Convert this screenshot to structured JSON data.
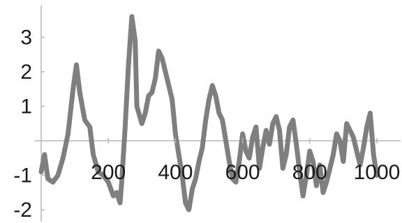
{
  "chart_data": {
    "type": "line",
    "title": "",
    "xlabel": "",
    "ylabel": "",
    "xlim": [
      0,
      1000
    ],
    "ylim": [
      -2.2,
      3.9
    ],
    "grid": false,
    "legend": "none",
    "x_ticks": [
      200,
      400,
      600,
      800,
      1000
    ],
    "y_ticks": [
      -2,
      -1,
      1,
      2,
      3
    ],
    "x_tick_labels": [
      "200",
      "400",
      "600",
      "800",
      "1000"
    ],
    "y_tick_labels": [
      "-2",
      "-1",
      "1",
      "2",
      "3"
    ],
    "series": [
      {
        "color": "#7f7f7f",
        "points": [
          [
            0,
            -0.9
          ],
          [
            10,
            -0.4
          ],
          [
            20,
            -1.1
          ],
          [
            35,
            -1.2
          ],
          [
            50,
            -1.0
          ],
          [
            65,
            -0.5
          ],
          [
            80,
            0.2
          ],
          [
            95,
            1.5
          ],
          [
            105,
            2.2
          ],
          [
            115,
            1.4
          ],
          [
            130,
            0.6
          ],
          [
            145,
            0.4
          ],
          [
            155,
            -0.4
          ],
          [
            170,
            -0.9
          ],
          [
            185,
            -1.0
          ],
          [
            200,
            -1.2
          ],
          [
            215,
            -1.6
          ],
          [
            225,
            -1.5
          ],
          [
            235,
            -1.8
          ],
          [
            240,
            -1.2
          ],
          [
            250,
            0.4
          ],
          [
            260,
            2.2
          ],
          [
            270,
            3.6
          ],
          [
            280,
            2.9
          ],
          [
            285,
            1.0
          ],
          [
            300,
            0.5
          ],
          [
            310,
            0.8
          ],
          [
            320,
            1.3
          ],
          [
            330,
            1.4
          ],
          [
            340,
            1.8
          ],
          [
            350,
            2.6
          ],
          [
            360,
            2.4
          ],
          [
            370,
            2.0
          ],
          [
            380,
            1.6
          ],
          [
            390,
            1.2
          ],
          [
            400,
            0.2
          ],
          [
            410,
            -0.4
          ],
          [
            420,
            -1.0
          ],
          [
            430,
            -1.8
          ],
          [
            440,
            -2.0
          ],
          [
            450,
            -1.4
          ],
          [
            460,
            -1.1
          ],
          [
            470,
            -0.6
          ],
          [
            480,
            -0.2
          ],
          [
            490,
            0.6
          ],
          [
            500,
            1.2
          ],
          [
            510,
            1.6
          ],
          [
            520,
            1.3
          ],
          [
            530,
            0.8
          ],
          [
            540,
            0.6
          ],
          [
            550,
            0.0
          ],
          [
            560,
            -0.6
          ],
          [
            570,
            -1.1
          ],
          [
            580,
            -1.2
          ],
          [
            590,
            -0.6
          ],
          [
            600,
            0.2
          ],
          [
            610,
            -0.3
          ],
          [
            620,
            -0.5
          ],
          [
            630,
            0.1
          ],
          [
            640,
            0.4
          ],
          [
            650,
            -0.8
          ],
          [
            660,
            -0.2
          ],
          [
            670,
            0.3
          ],
          [
            680,
            -0.1
          ],
          [
            690,
            0.5
          ],
          [
            700,
            0.7
          ],
          [
            710,
            0.3
          ],
          [
            720,
            -0.8
          ],
          [
            730,
            -0.4
          ],
          [
            740,
            0.4
          ],
          [
            750,
            0.6
          ],
          [
            760,
            -0.1
          ],
          [
            770,
            -0.9
          ],
          [
            780,
            -1.6
          ],
          [
            790,
            -1.0
          ],
          [
            800,
            -0.3
          ],
          [
            810,
            -0.6
          ],
          [
            820,
            -1.3
          ],
          [
            830,
            -0.7
          ],
          [
            840,
            -1.5
          ],
          [
            850,
            -1.2
          ],
          [
            860,
            -0.8
          ],
          [
            870,
            -0.4
          ],
          [
            880,
            0.2
          ],
          [
            890,
            0.0
          ],
          [
            900,
            -0.6
          ],
          [
            910,
            0.5
          ],
          [
            920,
            0.3
          ],
          [
            930,
            0.1
          ],
          [
            940,
            -0.3
          ],
          [
            950,
            -0.7
          ],
          [
            960,
            -0.2
          ],
          [
            970,
            0.4
          ],
          [
            980,
            0.8
          ],
          [
            990,
            -0.4
          ],
          [
            1000,
            -1.0
          ]
        ]
      }
    ]
  }
}
